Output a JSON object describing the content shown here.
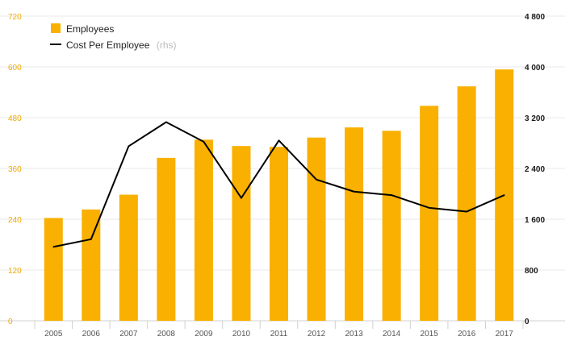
{
  "chart_data": {
    "type": "bar+line",
    "categories": [
      "2005",
      "2006",
      "2007",
      "2008",
      "2009",
      "2010",
      "2011",
      "2012",
      "2013",
      "2014",
      "2015",
      "2016",
      "2017"
    ],
    "series": [
      {
        "name": "Employees",
        "type": "bar",
        "axis": "left",
        "color": "#f9b000",
        "values": [
          243,
          263,
          298,
          385,
          428,
          413,
          411,
          433,
          457,
          449,
          508,
          554,
          594
        ]
      },
      {
        "name": "Cost Per Employee",
        "legend_note": "(rhs)",
        "type": "line",
        "axis": "right",
        "color": "#000000",
        "values": [
          1165,
          1285,
          2750,
          3130,
          2820,
          1935,
          2840,
          2225,
          2035,
          1980,
          1780,
          1720,
          1980
        ]
      }
    ],
    "y_left": {
      "min": 0,
      "max": 720,
      "ticks": [
        "0",
        "120",
        "240",
        "360",
        "480",
        "600",
        "720"
      ],
      "color": "#f2a900"
    },
    "y_right": {
      "min": 0,
      "max": 4800,
      "ticks": [
        "0",
        "800",
        "1 600",
        "2 400",
        "3 200",
        "4 000",
        "4 800"
      ],
      "color": "#1a1a1a"
    },
    "grid": true,
    "legend": "top-left"
  }
}
